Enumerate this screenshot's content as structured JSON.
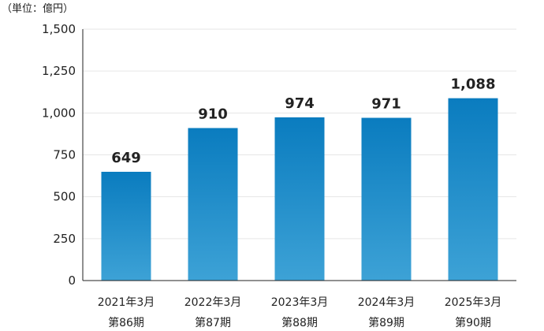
{
  "chart_data": {
    "type": "bar",
    "title": "",
    "unit_label": "（単位：億円）",
    "xlabel": "",
    "ylabel": "",
    "ylim": [
      0,
      1500
    ],
    "yticks": [
      0,
      250,
      500,
      750,
      1000,
      1250,
      1500
    ],
    "ytick_labels": [
      "0",
      "250",
      "500",
      "750",
      "1,000",
      "1,250",
      "1,500"
    ],
    "grid": true,
    "legend": "none",
    "categories": [
      [
        "2021年3月",
        "第86期"
      ],
      [
        "2022年3月",
        "第87期"
      ],
      [
        "2023年3月",
        "第88期"
      ],
      [
        "2024年3月",
        "第89期"
      ],
      [
        "2025年3月",
        "第90期"
      ]
    ],
    "values": [
      649,
      910,
      974,
      971,
      1088
    ],
    "value_labels": [
      "649",
      "910",
      "974",
      "971",
      "1,088"
    ],
    "colors": {
      "bar_top": "#0a7cbf",
      "bar_bottom": "#3da2d6",
      "grid": "#e6e6e6",
      "axis": "#222222",
      "text": "#222222"
    }
  }
}
